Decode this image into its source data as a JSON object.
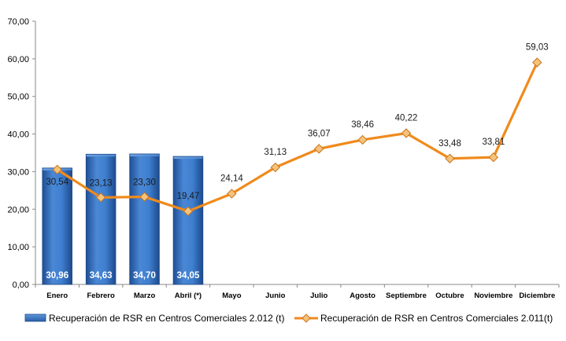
{
  "chart_data": {
    "type": "bar+line",
    "categories": [
      "Enero",
      "Febrero",
      "Marzo",
      "Abril (*)",
      "Mayo",
      "Junio",
      "Julio",
      "Agosto",
      "Septiembre",
      "Octubre",
      "Noviembre",
      "Diciembre"
    ],
    "ylim": [
      0,
      70
    ],
    "yticks": [
      "0,00",
      "10,00",
      "20,00",
      "30,00",
      "40,00",
      "50,00",
      "60,00",
      "70,00"
    ],
    "grid": false,
    "legend_position": "bottom",
    "series": [
      {
        "name": "Recuperación de RSR en Centros Comerciales 2.012 (t)",
        "type": "bar",
        "color": "#3a78c9",
        "values": [
          30.96,
          34.63,
          34.7,
          34.05,
          null,
          null,
          null,
          null,
          null,
          null,
          null,
          null
        ],
        "labels": [
          "30,96",
          "34,63",
          "34,70",
          "34,05",
          "",
          "",
          "",
          "",
          "",
          "",
          "",
          ""
        ]
      },
      {
        "name": "Recuperación de RSR en Centros Comerciales 2.011(t)",
        "type": "line",
        "color": "#f08a1c",
        "marker_color": "#f6c27a",
        "values": [
          30.54,
          23.13,
          23.3,
          19.47,
          24.14,
          31.13,
          36.07,
          38.46,
          40.22,
          33.48,
          33.81,
          59.03
        ],
        "labels": [
          "30,54",
          "23,13",
          "23,30",
          "19,47",
          "24,14",
          "31,13",
          "36,07",
          "38,46",
          "40,22",
          "33,48",
          "33,81",
          "59,03"
        ]
      }
    ]
  }
}
